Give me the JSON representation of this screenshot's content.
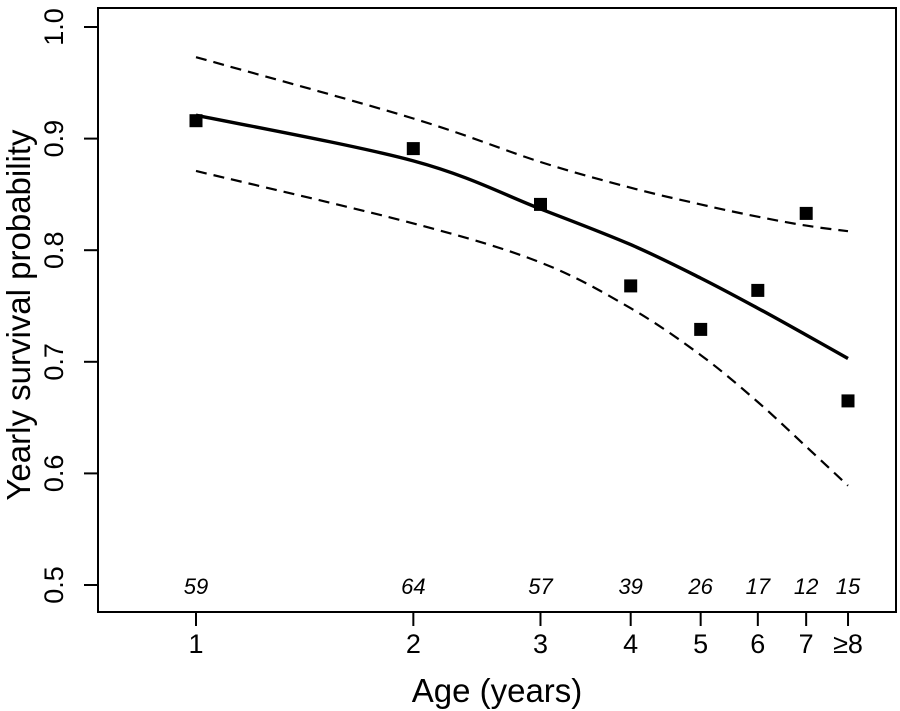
{
  "figure": {
    "background_color": "#ffffff",
    "line_color": "#000000"
  },
  "chart_data": {
    "type": "scatter",
    "title": "",
    "xlabel": "Age (years)",
    "ylabel": "Yearly survival probability",
    "x_scale": "log",
    "x_ticks": [
      1,
      2,
      3,
      4,
      5,
      6,
      7,
      8
    ],
    "x_tick_labels": [
      "1",
      "2",
      "3",
      "4",
      "5",
      "6",
      "7",
      "≥8"
    ],
    "y_ticks": [
      1.0,
      0.9,
      0.8,
      0.7,
      0.6,
      0.5
    ],
    "y_tick_labels": [
      "1.0",
      "0.9",
      "0.8",
      "0.7",
      "0.6",
      "0.5"
    ],
    "ylim": [
      0.5,
      1.0
    ],
    "grid": false,
    "legend": "none",
    "series": [
      {
        "name": "observed-survival-points",
        "kind": "points",
        "marker": "filled-square",
        "x": [
          1,
          2,
          3,
          4,
          5,
          6,
          7,
          8
        ],
        "y": [
          0.916,
          0.891,
          0.841,
          0.768,
          0.729,
          0.764,
          0.833,
          0.665
        ]
      },
      {
        "name": "model-fit-line",
        "kind": "line",
        "style": "solid",
        "x": [
          1,
          2,
          3,
          4,
          5,
          6,
          7,
          8
        ],
        "y": [
          0.921,
          0.88,
          0.837,
          0.805,
          0.775,
          0.748,
          0.724,
          0.703
        ]
      },
      {
        "name": "confidence-upper",
        "kind": "line",
        "style": "dashed",
        "x": [
          1,
          2,
          3,
          4,
          5,
          6,
          7,
          8
        ],
        "y": [
          0.973,
          0.918,
          0.879,
          0.856,
          0.841,
          0.83,
          0.822,
          0.817
        ]
      },
      {
        "name": "confidence-lower",
        "kind": "line",
        "style": "dashed",
        "x": [
          1,
          2,
          3,
          4,
          5,
          6,
          7,
          8
        ],
        "y": [
          0.871,
          0.824,
          0.789,
          0.748,
          0.706,
          0.664,
          0.624,
          0.589
        ]
      }
    ],
    "sample_sizes": {
      "labels": [
        "59",
        "64",
        "57",
        "39",
        "26",
        "17",
        "12",
        "15"
      ],
      "x": [
        1,
        2,
        3,
        4,
        5,
        6,
        7,
        8
      ]
    }
  }
}
